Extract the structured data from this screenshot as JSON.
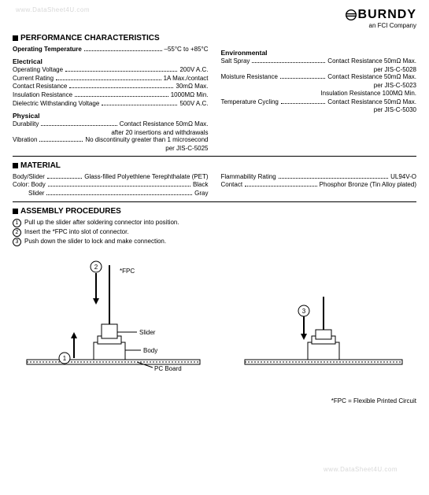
{
  "watermarks": {
    "top": "www.DataSheet4U.com",
    "bottom": "www.DataSheet4U.com"
  },
  "brand": {
    "name": "BURNDY",
    "subtitle": "an FCI Company"
  },
  "sections": {
    "perf_title": "PERFORMANCE CHARACTERISTICS",
    "material_title": "MATERIAL",
    "assembly_title": "ASSEMBLY PROCEDURES"
  },
  "perf": {
    "op_temp_label": "Operating Temperature",
    "op_temp_val": "–55°C to +85°C",
    "electrical_head": "Electrical",
    "electrical": [
      {
        "label": "Operating Voltage",
        "val": "200V A.C."
      },
      {
        "label": "Current Rating",
        "val": "1A Max./contact"
      },
      {
        "label": "Contact Resistance",
        "val": "30mΩ Max."
      },
      {
        "label": "Insulation Resistance",
        "val": "1000MΩ Min."
      },
      {
        "label": "Dielectric Withstanding Voltage",
        "val": "500V A.C."
      }
    ],
    "physical_head": "Physical",
    "durability_label": "Durability",
    "durability_val": "Contact Resistance 50mΩ Max.",
    "durability_cont": "after 20 insertions and withdrawals",
    "vibration_label": "Vibration",
    "vibration_val": "No discontinuity greater than 1 microsecond",
    "vibration_cont": "per JIS-C-5025",
    "env_head": "Environmental",
    "env": [
      {
        "label": "Salt Spray",
        "val": "Contact Resistance 50mΩ Max.",
        "cont": "per JIS-C-5028"
      },
      {
        "label": "Moisture Resistance",
        "val": "Contact Resistance 50mΩ Max.",
        "cont": "per JIS-C-5023"
      },
      {
        "label": "",
        "val": "Insulation Resistance 100MΩ Min.",
        "cont": ""
      },
      {
        "label": "Temperature Cycling",
        "val": "Contact Resistance 50mΩ Max.",
        "cont": "per JIS-C-5030"
      }
    ]
  },
  "material": {
    "left": [
      {
        "label": "Body/Slider",
        "val": "Glass-filled Polyethlene Terephthalate (PET)"
      },
      {
        "label": "Color: Body",
        "val": "Black"
      },
      {
        "label": "         Slider",
        "val": "Gray"
      }
    ],
    "right": [
      {
        "label": "Flammability Rating",
        "val": "UL94V-O"
      },
      {
        "label": "Contact",
        "val": "Phosphor Bronze (Tin Alloy plated)"
      }
    ]
  },
  "assembly": {
    "steps": [
      "Pull up the slider after soldering connector into position.",
      "Insert the *FPC into slot of connector.",
      "Push down the slider to lock and make connection."
    ],
    "labels": {
      "fpc": "*FPC",
      "slider": "Slider",
      "body": "Body",
      "pcboard": "PC Board"
    },
    "nums": {
      "one": "1",
      "two": "2",
      "three": "3"
    }
  },
  "footnote": "*FPC = Flexible Printed Circuit"
}
